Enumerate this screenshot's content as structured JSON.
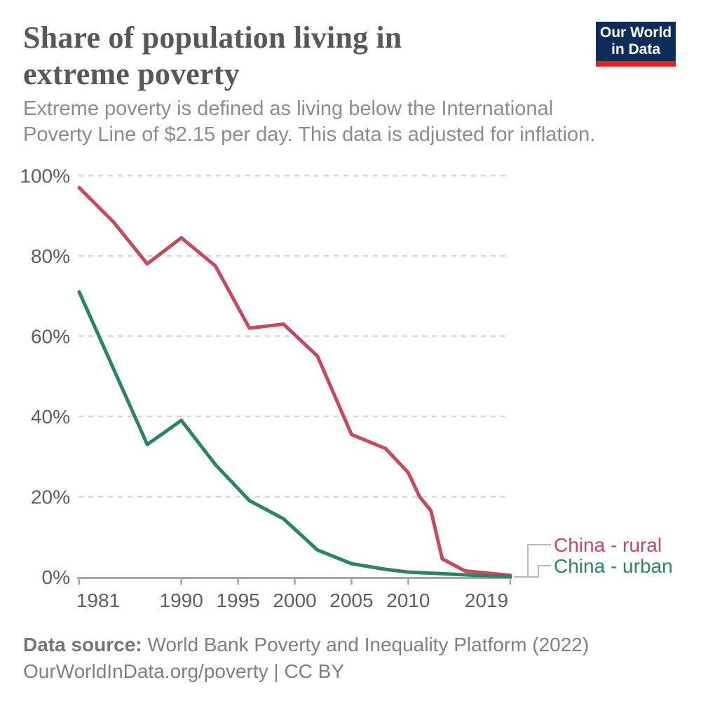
{
  "header": {
    "title_line1": "Share of population living in",
    "title_line2": "extreme poverty",
    "subtitle_line1": "Extreme poverty is defined as living below the International",
    "subtitle_line2": "Poverty Line of $2.15 per day. This data is adjusted for inflation.",
    "logo": {
      "line1": "Our World",
      "line2": "in Data",
      "navy": "#0d2e5a",
      "red": "#dc2626"
    }
  },
  "chart_data": {
    "type": "line",
    "title": "Share of population living in extreme poverty",
    "xlabel": "",
    "ylabel": "",
    "x_range": [
      1981,
      2019
    ],
    "ylim": [
      0,
      100
    ],
    "grid": "horizontal-dashed",
    "legend_position": "right-of-line-ends",
    "y_ticks": [
      {
        "value": 0,
        "label": "0%"
      },
      {
        "value": 20,
        "label": "20%"
      },
      {
        "value": 40,
        "label": "40%"
      },
      {
        "value": 60,
        "label": "60%"
      },
      {
        "value": 80,
        "label": "80%"
      },
      {
        "value": 100,
        "label": "100%"
      }
    ],
    "x_ticks": [
      {
        "value": 1981,
        "label": "1981"
      },
      {
        "value": 1990,
        "label": "1990"
      },
      {
        "value": 1995,
        "label": "1995"
      },
      {
        "value": 2000,
        "label": "2000"
      },
      {
        "value": 2005,
        "label": "2005"
      },
      {
        "value": 2010,
        "label": "2010"
      },
      {
        "value": 2019,
        "label": "2019"
      }
    ],
    "series": [
      {
        "name": "China - rural",
        "color": "#c6495e",
        "points": [
          [
            1981,
            97
          ],
          [
            1984,
            88.5
          ],
          [
            1987,
            78
          ],
          [
            1990,
            84.5
          ],
          [
            1993,
            77.5
          ],
          [
            1996,
            62
          ],
          [
            1999,
            63
          ],
          [
            2002,
            55
          ],
          [
            2005,
            35.5
          ],
          [
            2008,
            32
          ],
          [
            2010,
            26
          ],
          [
            2011,
            20
          ],
          [
            2012,
            16.5
          ],
          [
            2013,
            4.5
          ],
          [
            2015,
            1.5
          ],
          [
            2019,
            0.4
          ]
        ]
      },
      {
        "name": "China - urban",
        "color": "#2c8465",
        "points": [
          [
            1981,
            71
          ],
          [
            1984,
            52
          ],
          [
            1987,
            33
          ],
          [
            1990,
            39
          ],
          [
            1993,
            28
          ],
          [
            1996,
            19
          ],
          [
            1999,
            14.5
          ],
          [
            2002,
            6.7
          ],
          [
            2005,
            3.3
          ],
          [
            2008,
            1.9
          ],
          [
            2010,
            1.2
          ],
          [
            2013,
            0.8
          ],
          [
            2016,
            0.4
          ],
          [
            2019,
            0.1
          ]
        ]
      }
    ]
  },
  "footer": {
    "source_label": "Data source:",
    "source_text": " World Bank Poverty and Inequality Platform (2022)",
    "license_line": "OurWorldInData.org/poverty | CC BY"
  }
}
